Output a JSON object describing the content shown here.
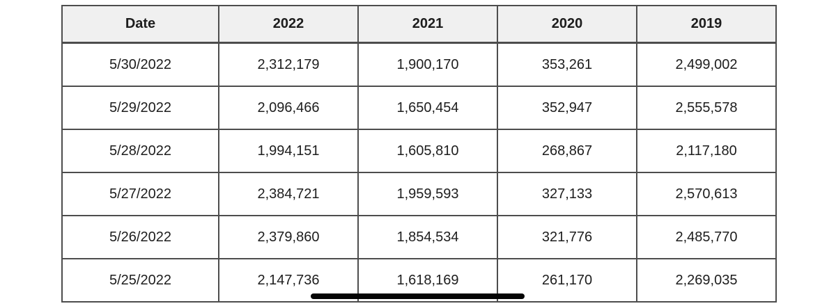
{
  "chart_data": {
    "type": "table",
    "title": "",
    "columns": [
      "Date",
      "2022",
      "2021",
      "2020",
      "2019"
    ],
    "rows": [
      [
        "5/30/2022",
        "2,312,179",
        "1,900,170",
        "353,261",
        "2,499,002"
      ],
      [
        "5/29/2022",
        "2,096,466",
        "1,650,454",
        "352,947",
        "2,555,578"
      ],
      [
        "5/28/2022",
        "1,994,151",
        "1,605,810",
        "268,867",
        "2,117,180"
      ],
      [
        "5/27/2022",
        "2,384,721",
        "1,959,593",
        "327,133",
        "2,570,613"
      ],
      [
        "5/26/2022",
        "2,379,860",
        "1,854,534",
        "321,776",
        "2,485,770"
      ],
      [
        "5/25/2022",
        "2,147,736",
        "1,618,169",
        "261,170",
        "2,269,035"
      ]
    ],
    "layout_hints": {
      "header_background": "#f0f0f0",
      "border_color": "#4d4d4d",
      "text_color": "#1d1d1d",
      "cell_alignment": "center",
      "grid": "on"
    }
  },
  "annotation": {
    "name": "marker-underline",
    "description": "thick black marker line underlining value 1,618,169 in bottom row",
    "color": "#050505",
    "target_value": "1,618,169"
  }
}
